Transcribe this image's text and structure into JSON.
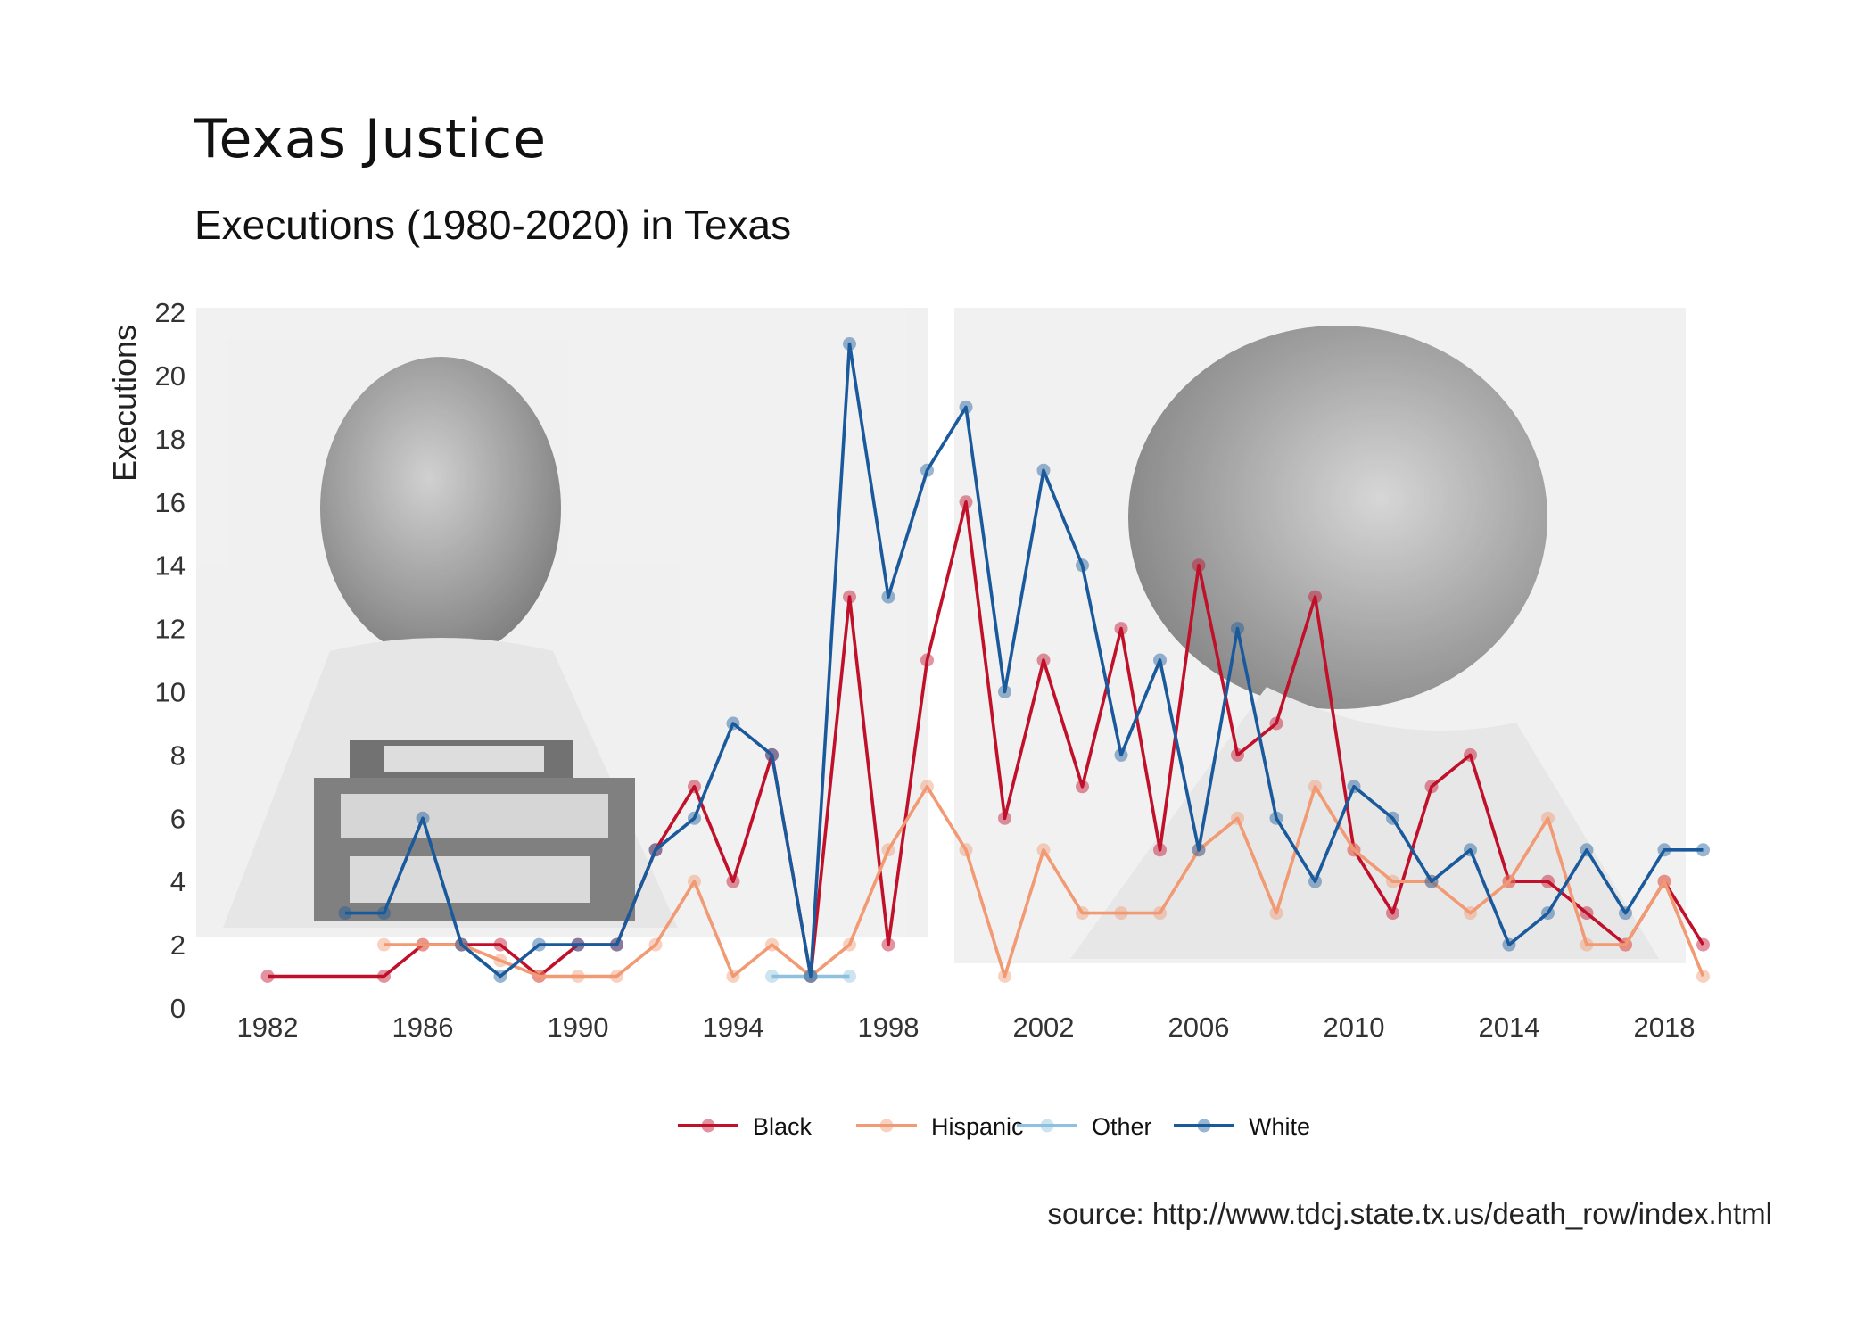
{
  "chart_data": {
    "type": "line",
    "title": "Texas Justice",
    "subtitle": "Executions (1980-2020) in Texas",
    "xlabel": "",
    "ylabel": "Executions",
    "xlim": [
      1980,
      2020
    ],
    "ylim": [
      0,
      22
    ],
    "x_ticks": [
      1982,
      1986,
      1990,
      1994,
      1998,
      2002,
      2006,
      2010,
      2014,
      2018
    ],
    "y_ticks": [
      0,
      2,
      4,
      6,
      8,
      10,
      12,
      14,
      16,
      18,
      20,
      22
    ],
    "grid": false,
    "legend_position": "bottom",
    "background_image": "two grayscale inmate mugshots (front and profile views)",
    "series": [
      {
        "name": "Black",
        "color": "#c0102a",
        "points": [
          [
            1982,
            1
          ],
          [
            1985,
            1
          ],
          [
            1986,
            2
          ],
          [
            1987,
            2
          ],
          [
            1988,
            2
          ],
          [
            1989,
            1
          ],
          [
            1990,
            2
          ],
          [
            1991,
            2
          ],
          [
            1992,
            5
          ],
          [
            1993,
            7
          ],
          [
            1994,
            4
          ],
          [
            1995,
            8
          ],
          [
            1996,
            1
          ],
          [
            1997,
            13
          ],
          [
            1998,
            2
          ],
          [
            1999,
            11
          ],
          [
            2000,
            16
          ],
          [
            2001,
            6
          ],
          [
            2002,
            11
          ],
          [
            2003,
            7
          ],
          [
            2004,
            12
          ],
          [
            2005,
            5
          ],
          [
            2006,
            14
          ],
          [
            2007,
            8
          ],
          [
            2008,
            9
          ],
          [
            2009,
            13
          ],
          [
            2010,
            5
          ],
          [
            2011,
            3
          ],
          [
            2012,
            7
          ],
          [
            2013,
            8
          ],
          [
            2014,
            4
          ],
          [
            2015,
            4
          ],
          [
            2016,
            3
          ],
          [
            2017,
            2
          ],
          [
            2018,
            4
          ],
          [
            2019,
            2
          ]
        ]
      },
      {
        "name": "Hispanic",
        "color": "#f19a74",
        "points": [
          [
            1985,
            2
          ],
          [
            1986,
            2
          ],
          [
            1987,
            2
          ],
          [
            1988,
            1.5
          ],
          [
            1989,
            1
          ],
          [
            1990,
            1
          ],
          [
            1991,
            1
          ],
          [
            1992,
            2
          ],
          [
            1993,
            4
          ],
          [
            1994,
            1
          ],
          [
            1995,
            2
          ],
          [
            1996,
            1
          ],
          [
            1997,
            2
          ],
          [
            1998,
            5
          ],
          [
            1999,
            7
          ],
          [
            2000,
            5
          ],
          [
            2001,
            1
          ],
          [
            2002,
            5
          ],
          [
            2003,
            3
          ],
          [
            2004,
            3
          ],
          [
            2005,
            3
          ],
          [
            2006,
            5
          ],
          [
            2007,
            6
          ],
          [
            2008,
            3
          ],
          [
            2009,
            7
          ],
          [
            2010,
            5
          ],
          [
            2011,
            4
          ],
          [
            2012,
            4
          ],
          [
            2013,
            3
          ],
          [
            2014,
            4
          ],
          [
            2015,
            6
          ],
          [
            2016,
            2
          ],
          [
            2017,
            2
          ],
          [
            2018,
            4
          ],
          [
            2019,
            1
          ]
        ]
      },
      {
        "name": "Other",
        "color": "#8fc0dd",
        "points": [
          [
            1995,
            1
          ],
          [
            1996,
            1
          ],
          [
            1997,
            1
          ]
        ]
      },
      {
        "name": "White",
        "color": "#1a5a9c",
        "points": [
          [
            1984,
            3
          ],
          [
            1985,
            3
          ],
          [
            1986,
            6
          ],
          [
            1987,
            2
          ],
          [
            1988,
            1
          ],
          [
            1989,
            2
          ],
          [
            1990,
            2
          ],
          [
            1991,
            2
          ],
          [
            1992,
            5
          ],
          [
            1993,
            6
          ],
          [
            1994,
            9
          ],
          [
            1995,
            8
          ],
          [
            1996,
            1
          ],
          [
            1997,
            21
          ],
          [
            1998,
            13
          ],
          [
            1999,
            17
          ],
          [
            2000,
            19
          ],
          [
            2001,
            10
          ],
          [
            2002,
            17
          ],
          [
            2003,
            14
          ],
          [
            2004,
            8
          ],
          [
            2005,
            11
          ],
          [
            2006,
            5
          ],
          [
            2007,
            12
          ],
          [
            2008,
            6
          ],
          [
            2009,
            4
          ],
          [
            2010,
            7
          ],
          [
            2011,
            6
          ],
          [
            2012,
            4
          ],
          [
            2013,
            5
          ],
          [
            2014,
            2
          ],
          [
            2015,
            3
          ],
          [
            2016,
            5
          ],
          [
            2017,
            3
          ],
          [
            2018,
            5
          ],
          [
            2019,
            5
          ]
        ]
      }
    ],
    "source": "source: http://www.tdcj.state.tx.us/death_row/index.html"
  }
}
